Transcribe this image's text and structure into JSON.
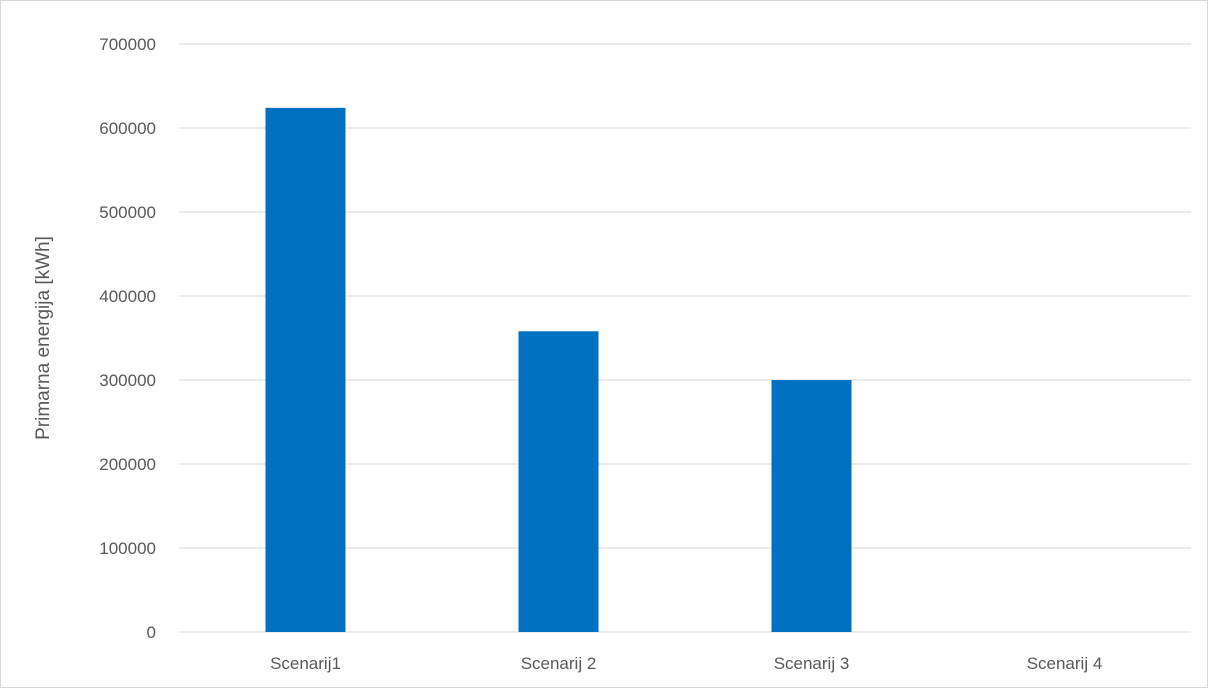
{
  "chart_data": {
    "type": "bar",
    "title": "",
    "xlabel": "",
    "ylabel": "Primarna energija [kWh]",
    "categories": [
      "Scenarij1",
      "Scenarij 2",
      "Scenarij 3",
      "Scenarij 4"
    ],
    "series": [
      {
        "values": [
          624000,
          358000,
          300000,
          0
        ],
        "color": "#0070c0"
      }
    ],
    "ylim": [
      0,
      700000
    ],
    "yticks": [
      0,
      100000,
      200000,
      300000,
      400000,
      500000,
      600000,
      700000
    ],
    "ytick_labels": [
      "0",
      "100000",
      "200000",
      "300000",
      "400000",
      "500000",
      "600000",
      "700000"
    ],
    "grid": true,
    "legend": "none",
    "colors": {
      "bar": "#0070c0",
      "grid": "#d9d9d9",
      "text": "#595959",
      "border": "#d9d9d9"
    }
  }
}
